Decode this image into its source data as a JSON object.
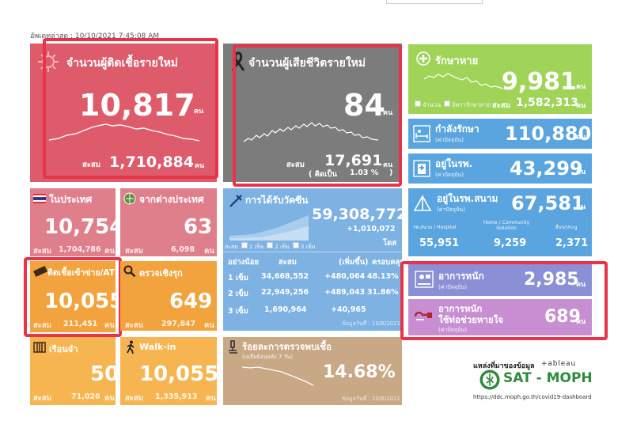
{
  "updated": "อัพเดทล่าสุด : 10/10/2021 7:45:08 AM",
  "colors": {
    "red": "#dd5b6b",
    "gray": "#7c7c7c",
    "green": "#9fd459",
    "blue": "#5aa5df",
    "pinkred": "#e07f8c",
    "orange": "#f2a33d",
    "orange2": "#f7b551",
    "vacblue": "#7eb2e3",
    "tan": "#c9a886",
    "purple": "#8b8fd6",
    "purple2": "#c78fd2",
    "highlight": "#e8334a"
  },
  "new_cases": {
    "title": "จำนวนผู้ติดเชื้อรายใหม่",
    "value": "10,817",
    "unit": "คน",
    "cum_label": "สะสม",
    "cum_value": "1,710,884",
    "cum_unit": "คน"
  },
  "deaths": {
    "title": "จำนวนผู้เสียชีวิตรายใหม่",
    "value": "84",
    "unit": "คน",
    "cum_label": "สะสม",
    "cum_value": "17,691",
    "cum_unit": "คน",
    "pct_label": "( คิดเป็น",
    "pct_value": "1.03 %",
    ")": ")"
  },
  "recovered": {
    "title": "รักษาหาย",
    "value": "9,981",
    "unit": "คน",
    "legend1": "จำนวน",
    "legend2": "อัตรารักษาหาย",
    "cum_label": "สะสม",
    "cum_value": "1,582,313",
    "cum_unit": "คน"
  },
  "treating": {
    "title": "กำลังรักษา",
    "sub": "(ค่าปัจจุบัน)",
    "value": "110,880",
    "unit": "คน"
  },
  "hospital": {
    "title": "อยู่ในรพ.",
    "sub": "(ค่าปัจจุบัน)",
    "value": "43,299",
    "unit": "คน"
  },
  "field_hospital": {
    "title": "อยู่ในรพ.สนาม",
    "sub": "(ค่าปัจจุบัน)",
    "value": "67,581",
    "unit": "คน",
    "cols": [
      {
        "label": "รพ.สนาม / Hospitel",
        "value": "55,951"
      },
      {
        "label": "Home / Community Isolation",
        "value": "9,259"
      },
      {
        "label": "อื่นๆ/ประนู",
        "value": "2,371"
      }
    ]
  },
  "domestic": {
    "title": "ในประเทศ",
    "value": "10,754",
    "cum_label": "สะสม",
    "cum_value": "1,704,786",
    "cum_unit": "คน"
  },
  "abroad": {
    "title": "จากต่างประเทศ",
    "value": "63",
    "cum_label": "สะสม",
    "cum_value": "6,098",
    "cum_unit": "คน"
  },
  "vaccine": {
    "title": "การได้รับวัคซีน",
    "value": "59,308,772",
    "delta": "+1,010,072",
    "dose_unit": "โดส",
    "legend": [
      "1 เข็ม",
      "2 เข็ม",
      "3 เข็ม"
    ],
    "legend_prefix": "สะสม",
    "headers": [
      "อย่างน้อย",
      "สะสม",
      "(เพิ่มขึ้น)",
      "ครอบคลุม"
    ],
    "rows": [
      {
        "dose": "1 เข็ม",
        "cum": "34,668,552",
        "inc": "+480,064",
        "cov": "48.13%"
      },
      {
        "dose": "2 เข็ม",
        "cum": "22,949,256",
        "inc": "+489,043",
        "cov": "31.86%"
      },
      {
        "dose": "3 เข็ม",
        "cum": "1,690,964",
        "inc": "+40,965",
        "cov": ""
      }
    ],
    "data_date": "ข้อมูลวันที่ : 10/8/2021"
  },
  "atk": {
    "title": "ติดเชื้อเข้าข่าย/ATK",
    "value": "10,055",
    "cum_label": "สะสม",
    "cum_value": "211,451",
    "cum_unit": "คน"
  },
  "active_search": {
    "title": "ตรวจเชิงรุก",
    "value": "649",
    "cum_label": "สะสม",
    "cum_value": "297,847",
    "cum_unit": "คน"
  },
  "prison": {
    "title": "เรือนจำ",
    "value": "50",
    "cum_label": "สะสม",
    "cum_value": "71,026",
    "cum_unit": "คน"
  },
  "walkin": {
    "title": "Walk-in",
    "value": "10,055",
    "cum_label": "สะสม",
    "cum_value": "1,335,913",
    "cum_unit": "คน"
  },
  "positivity": {
    "title": "ร้อยละการตรวจพบเชื้อ",
    "sub": "(เฉลี่ยย้อนหลัง 7 วัน)",
    "value": "14.68%",
    "data_date": "ข้อมูลวันที่ : 10/8/2021"
  },
  "severe": {
    "title": "อาการหนัก",
    "sub": "(ค่าปัจจุบัน)",
    "value": "2,985",
    "unit": "คน"
  },
  "ventilator": {
    "title": "อาการหนัก",
    "title2": "ใช้ท่อช่วยหายใจ",
    "sub": "(ค่าปัจจุบัน)",
    "value": "689",
    "unit": "คน"
  },
  "source": {
    "label": "แหล่งที่มาของข้อมูล",
    "tableau": "+ a b l e a u",
    "org": "SAT - MOPH",
    "url": "https://ddc.moph.go.th/covid19-dashboard"
  }
}
